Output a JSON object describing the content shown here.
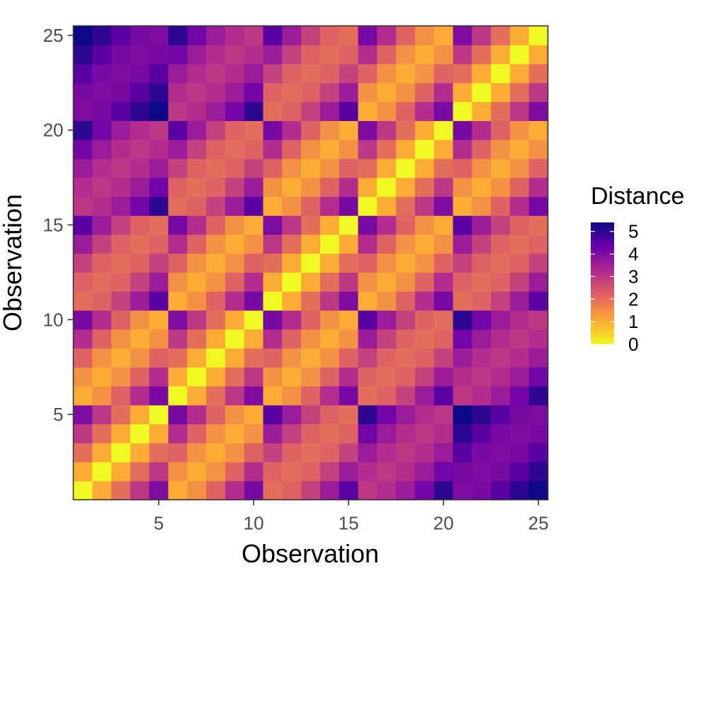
{
  "chart_data": {
    "type": "heatmap",
    "xlabel": "Observation",
    "ylabel": "Observation",
    "x_range": [
      1,
      25
    ],
    "y_range": [
      1,
      25
    ],
    "x_ticks": [
      5,
      10,
      15,
      20,
      25
    ],
    "y_ticks": [
      5,
      10,
      15,
      20,
      25
    ],
    "grid": false,
    "legend": {
      "title": "Distance",
      "placement": "right",
      "ticks": [
        0,
        1,
        2,
        3,
        4,
        5
      ],
      "range": [
        0,
        5.4
      ],
      "colors": [
        "#f0f921",
        "#fca636",
        "#e16462",
        "#b12a90",
        "#6a00a8",
        "#0d0887"
      ]
    },
    "z": [
      [
        0.0,
        1.0,
        2.0,
        3.0,
        4.0,
        1.0,
        1.4,
        2.2,
        3.2,
        4.1,
        2.0,
        2.2,
        2.8,
        3.6,
        4.5,
        3.0,
        3.2,
        3.6,
        4.2,
        5.0,
        4.0,
        4.1,
        4.5,
        5.0,
        5.4
      ],
      [
        1.0,
        0.0,
        1.0,
        2.0,
        3.0,
        1.4,
        1.0,
        1.4,
        2.2,
        3.2,
        2.2,
        2.0,
        2.2,
        2.8,
        3.6,
        3.2,
        3.0,
        3.2,
        3.6,
        4.2,
        4.1,
        4.0,
        4.1,
        4.5,
        5.0
      ],
      [
        2.0,
        1.0,
        0.0,
        1.0,
        2.0,
        2.2,
        1.4,
        1.0,
        1.4,
        2.2,
        2.8,
        2.2,
        2.0,
        2.2,
        2.8,
        3.6,
        3.2,
        3.0,
        3.2,
        3.6,
        4.5,
        4.1,
        4.0,
        4.1,
        4.5
      ],
      [
        3.0,
        2.0,
        1.0,
        0.0,
        1.0,
        3.2,
        2.2,
        1.4,
        1.0,
        1.4,
        3.6,
        2.8,
        2.2,
        2.0,
        2.2,
        4.2,
        3.6,
        3.2,
        3.0,
        3.2,
        5.0,
        4.5,
        4.1,
        4.0,
        4.1
      ],
      [
        4.0,
        3.0,
        2.0,
        1.0,
        0.0,
        4.1,
        3.2,
        2.2,
        1.4,
        1.0,
        4.5,
        3.6,
        2.8,
        2.2,
        2.0,
        5.0,
        4.2,
        3.6,
        3.2,
        3.0,
        5.4,
        5.0,
        4.5,
        4.1,
        4.0
      ],
      [
        1.0,
        1.4,
        2.2,
        3.2,
        4.1,
        0.0,
        1.0,
        2.0,
        3.0,
        4.0,
        1.0,
        1.4,
        2.2,
        3.2,
        4.1,
        2.0,
        2.2,
        2.8,
        3.6,
        4.5,
        3.0,
        3.2,
        3.6,
        4.2,
        5.0
      ],
      [
        1.4,
        1.0,
        1.4,
        2.2,
        3.2,
        1.0,
        0.0,
        1.0,
        2.0,
        3.0,
        1.4,
        1.0,
        1.4,
        2.2,
        3.2,
        2.2,
        2.0,
        2.2,
        2.8,
        3.6,
        3.2,
        3.0,
        3.2,
        3.6,
        4.2
      ],
      [
        2.2,
        1.4,
        1.0,
        1.4,
        2.2,
        2.0,
        1.0,
        0.0,
        1.0,
        2.0,
        2.2,
        1.4,
        1.0,
        1.4,
        2.2,
        2.8,
        2.2,
        2.0,
        2.2,
        2.8,
        3.6,
        3.2,
        3.0,
        3.2,
        3.6
      ],
      [
        3.2,
        2.2,
        1.4,
        1.0,
        1.4,
        3.0,
        2.0,
        1.0,
        0.0,
        1.0,
        3.2,
        2.2,
        1.4,
        1.0,
        1.4,
        3.6,
        2.8,
        2.2,
        2.0,
        2.2,
        4.2,
        3.6,
        3.2,
        3.0,
        3.2
      ],
      [
        4.1,
        3.2,
        2.2,
        1.4,
        1.0,
        4.0,
        3.0,
        2.0,
        1.0,
        0.0,
        4.1,
        3.2,
        2.2,
        1.4,
        1.0,
        4.5,
        3.6,
        2.8,
        2.2,
        2.0,
        5.0,
        4.2,
        3.6,
        3.2,
        3.0
      ],
      [
        2.0,
        2.2,
        2.8,
        3.6,
        4.5,
        1.0,
        1.4,
        2.2,
        3.2,
        4.1,
        0.0,
        1.0,
        2.0,
        3.0,
        4.0,
        1.0,
        1.4,
        2.2,
        3.2,
        4.1,
        2.0,
        2.2,
        2.8,
        3.6,
        4.5
      ],
      [
        2.2,
        2.0,
        2.2,
        2.8,
        3.6,
        1.4,
        1.0,
        1.4,
        2.2,
        3.2,
        1.0,
        0.0,
        1.0,
        2.0,
        3.0,
        1.4,
        1.0,
        1.4,
        2.2,
        3.2,
        2.2,
        2.0,
        2.2,
        2.8,
        3.6
      ],
      [
        2.8,
        2.2,
        2.0,
        2.2,
        2.8,
        2.2,
        1.4,
        1.0,
        1.4,
        2.2,
        2.0,
        1.0,
        0.0,
        1.0,
        2.0,
        2.2,
        1.4,
        1.0,
        1.4,
        2.2,
        2.8,
        2.2,
        2.0,
        2.2,
        2.8
      ],
      [
        3.6,
        2.8,
        2.2,
        2.0,
        2.2,
        3.2,
        2.2,
        1.4,
        1.0,
        1.4,
        3.0,
        2.0,
        1.0,
        0.0,
        1.0,
        3.2,
        2.2,
        1.4,
        1.0,
        1.4,
        3.6,
        2.8,
        2.2,
        2.0,
        2.2
      ],
      [
        4.5,
        3.6,
        2.8,
        2.2,
        2.0,
        4.1,
        3.2,
        2.2,
        1.4,
        1.0,
        4.0,
        3.0,
        2.0,
        1.0,
        0.0,
        4.1,
        3.2,
        2.2,
        1.4,
        1.0,
        4.5,
        3.6,
        2.8,
        2.2,
        2.0
      ],
      [
        3.0,
        3.2,
        3.6,
        4.2,
        5.0,
        2.0,
        2.2,
        2.8,
        3.6,
        4.5,
        1.0,
        1.4,
        2.2,
        3.2,
        4.1,
        0.0,
        1.0,
        2.0,
        3.0,
        4.0,
        1.0,
        1.4,
        2.2,
        3.2,
        4.1
      ],
      [
        3.2,
        3.0,
        3.2,
        3.6,
        4.2,
        2.2,
        2.0,
        2.2,
        2.8,
        3.6,
        1.4,
        1.0,
        1.4,
        2.2,
        3.2,
        1.0,
        0.0,
        1.0,
        2.0,
        3.0,
        1.4,
        1.0,
        1.4,
        2.2,
        3.2
      ],
      [
        3.6,
        3.2,
        3.0,
        3.2,
        3.6,
        2.8,
        2.2,
        2.0,
        2.2,
        2.8,
        2.2,
        1.4,
        1.0,
        1.4,
        2.2,
        2.0,
        1.0,
        0.0,
        1.0,
        2.0,
        2.2,
        1.4,
        1.0,
        1.4,
        2.2
      ],
      [
        4.2,
        3.6,
        3.2,
        3.0,
        3.2,
        3.6,
        2.8,
        2.2,
        2.0,
        2.2,
        3.2,
        2.2,
        1.4,
        1.0,
        1.4,
        3.0,
        2.0,
        1.0,
        0.0,
        1.0,
        3.2,
        2.2,
        1.4,
        1.0,
        1.4
      ],
      [
        5.0,
        4.2,
        3.6,
        3.2,
        3.0,
        4.5,
        3.6,
        2.8,
        2.2,
        2.0,
        4.1,
        3.2,
        2.2,
        1.4,
        1.0,
        4.0,
        3.0,
        2.0,
        1.0,
        0.0,
        4.1,
        3.2,
        2.2,
        1.4,
        1.0
      ],
      [
        4.0,
        4.1,
        4.5,
        5.0,
        5.4,
        3.0,
        3.2,
        3.6,
        4.2,
        5.0,
        2.0,
        2.2,
        2.8,
        3.6,
        4.5,
        1.0,
        1.4,
        2.2,
        3.2,
        4.1,
        0.0,
        1.0,
        2.0,
        3.0,
        4.0
      ],
      [
        4.1,
        4.0,
        4.1,
        4.5,
        5.0,
        3.2,
        3.0,
        3.2,
        3.6,
        4.2,
        2.2,
        2.0,
        2.2,
        2.8,
        3.6,
        1.4,
        1.0,
        1.4,
        2.2,
        3.2,
        1.0,
        0.0,
        1.0,
        2.0,
        3.0
      ],
      [
        4.5,
        4.1,
        4.0,
        4.1,
        4.5,
        3.6,
        3.2,
        3.0,
        3.2,
        3.6,
        2.8,
        2.2,
        2.0,
        2.2,
        2.8,
        2.2,
        1.4,
        1.0,
        1.4,
        2.2,
        2.0,
        1.0,
        0.0,
        1.0,
        2.0
      ],
      [
        5.0,
        4.5,
        4.1,
        4.0,
        4.1,
        4.2,
        3.6,
        3.2,
        3.0,
        3.2,
        3.6,
        2.8,
        2.2,
        2.0,
        2.2,
        3.2,
        2.2,
        1.4,
        1.0,
        1.4,
        3.0,
        2.0,
        1.0,
        0.0,
        1.0
      ],
      [
        5.4,
        5.0,
        4.5,
        4.1,
        4.0,
        5.0,
        4.2,
        3.6,
        3.2,
        3.0,
        4.5,
        3.6,
        2.8,
        2.2,
        2.0,
        4.1,
        3.2,
        2.2,
        1.4,
        1.0,
        4.0,
        3.0,
        2.0,
        1.0,
        0.0
      ]
    ]
  }
}
